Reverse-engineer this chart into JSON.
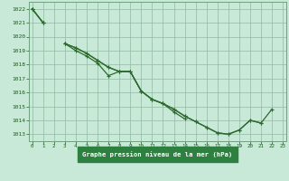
{
  "title": "Graphe pression niveau de la mer (hPa)",
  "x": [
    0,
    1,
    2,
    3,
    4,
    5,
    6,
    7,
    8,
    9,
    10,
    11,
    12,
    13,
    14,
    15,
    16,
    17,
    18,
    19,
    20,
    21,
    22,
    23
  ],
  "series": [
    [
      1022,
      1021,
      null,
      1019.5,
      1019.2,
      1018.8,
      1018.3,
      1017.8,
      1017.5,
      1017.5,
      1016.1,
      1015.5,
      1015.2,
      1014.8,
      1014.3,
      1013.9,
      1013.5,
      1013.1,
      1013.0,
      1013.3,
      1014.0,
      1013.8,
      null,
      null
    ],
    [
      1022,
      1021,
      null,
      1019.5,
      1019.2,
      1018.8,
      1018.3,
      1017.8,
      1017.5,
      1017.5,
      1016.1,
      1015.5,
      1015.2,
      1014.8,
      1014.3,
      1013.9,
      1013.5,
      1013.1,
      1013.0,
      1013.3,
      1014.0,
      1013.8,
      1014.8,
      null
    ],
    [
      1022,
      1021,
      null,
      1019.5,
      1019.0,
      1018.6,
      1018.1,
      1017.2,
      1017.5,
      1017.5,
      1016.1,
      1015.5,
      1015.2,
      1014.6,
      1014.1,
      null,
      null,
      null,
      null,
      null,
      null,
      null,
      null,
      null
    ]
  ],
  "line_color": "#2d6a2d",
  "bg_color": "#c8e8d8",
  "grid_color": "#90b8a0",
  "text_color": "#1a5c1a",
  "label_bg": "#2d8040",
  "ylim": [
    1012.5,
    1022.5
  ],
  "xlim": [
    -0.3,
    23.3
  ],
  "yticks": [
    1013,
    1014,
    1015,
    1016,
    1017,
    1018,
    1019,
    1020,
    1021,
    1022
  ],
  "xticks": [
    0,
    1,
    2,
    3,
    4,
    5,
    6,
    7,
    8,
    9,
    10,
    11,
    12,
    13,
    14,
    15,
    16,
    17,
    18,
    19,
    20,
    21,
    22,
    23
  ]
}
